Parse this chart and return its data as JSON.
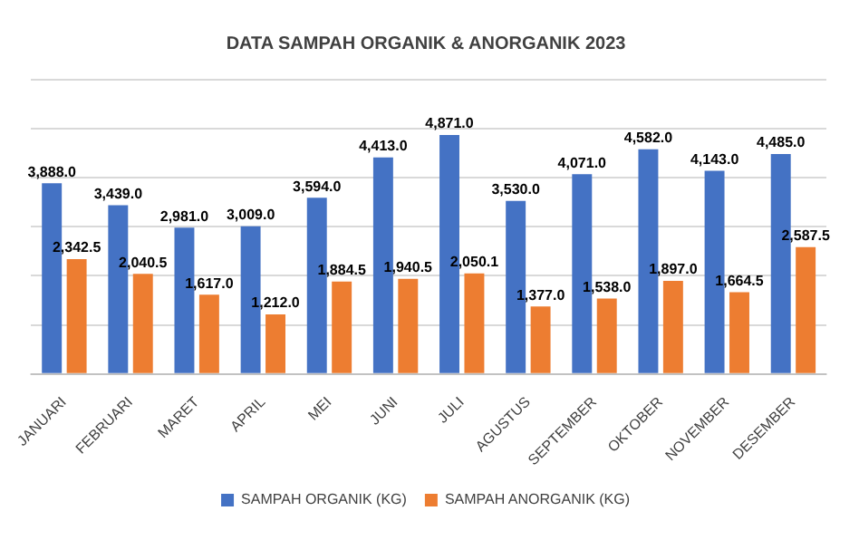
{
  "chart_data": {
    "type": "bar",
    "title": "DATA SAMPAH ORGANIK & ANORGANIK 2023",
    "categories": [
      "JANUARI",
      "FEBRUARI",
      "MARET",
      "APRIL",
      "MEI",
      "JUNI",
      "JULI",
      "AGUSTUS",
      "SEPTEMBER",
      "OKTOBER",
      "NOVEMBER",
      "DESEMBER"
    ],
    "series": [
      {
        "name": "SAMPAH ORGANIK (KG)",
        "color": "#4472c4",
        "values": [
          3888,
          3439,
          2981,
          3009,
          3594,
          4413,
          4871,
          3530,
          4071,
          4582,
          4143,
          4485
        ],
        "value_labels": [
          "3,888.0",
          "3,439.0",
          "2,981.0",
          "3,009.0",
          "3,594.0",
          "4,413.0",
          "4,871.0",
          "3,530.0",
          "4,071.0",
          "4,582.0",
          "4,143.0",
          "4,485.0"
        ]
      },
      {
        "name": "SAMPAH ANORGANIK (KG)",
        "color": "#ed7d31",
        "values": [
          2342.5,
          2040.5,
          1617,
          1212,
          1884.5,
          1940.5,
          2050.1,
          1377,
          1538,
          1897,
          1664.5,
          2587.5
        ],
        "value_labels": [
          "2,342.5",
          "2,040.5",
          "1,617.0",
          "1,212.0",
          "1,884.5",
          "1,940.5",
          "2,050.1",
          "1,377.0",
          "1,538.0",
          "1,897.0",
          "1,664.5",
          "2,587.5"
        ]
      }
    ],
    "ylim": [
      0,
      6000
    ],
    "yticks": [
      {
        "value": 0,
        "label": null
      },
      {
        "value": 1000,
        "label": null
      },
      {
        "value": 2000,
        "label": null
      },
      {
        "value": 3000,
        "label": null
      },
      {
        "value": 4000,
        "label": null
      },
      {
        "value": 5000,
        "label": null
      },
      {
        "value": 6000,
        "label": null
      }
    ],
    "tick_labels": "x",
    "grid": "y",
    "legend": "bottom"
  }
}
